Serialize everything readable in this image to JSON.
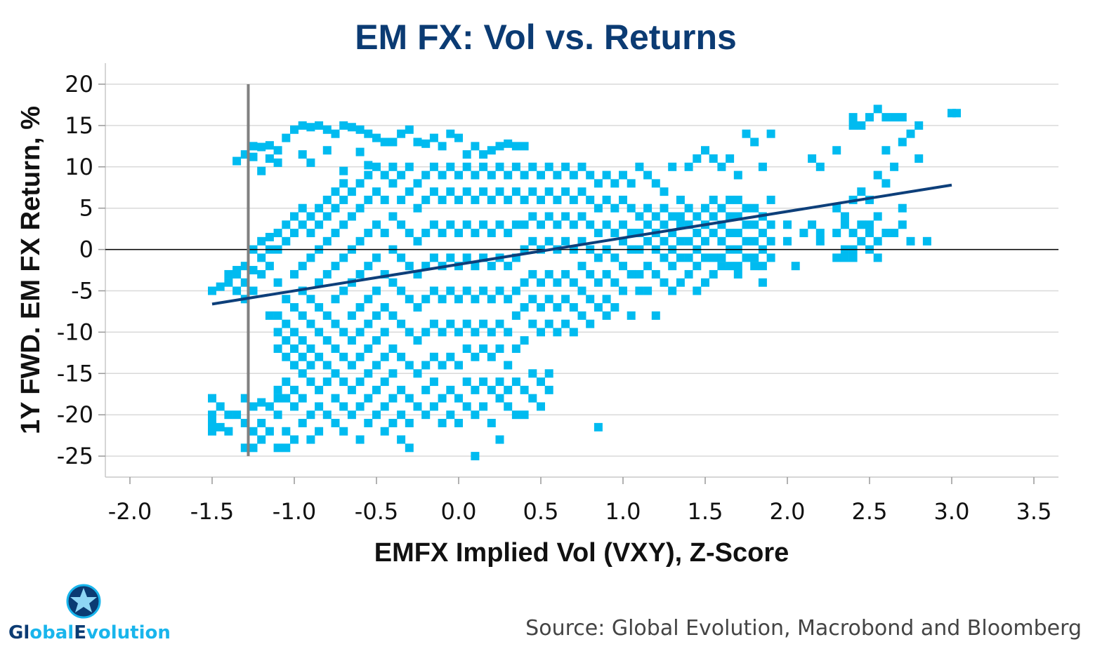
{
  "chart_data": {
    "type": "scatter",
    "title": "EM FX: Vol vs. Returns",
    "xlabel": "EMFX Implied Vol (VXY), Z-Score",
    "ylabel": "1Y FWD. EM FX Return, %",
    "xlim": [
      -2.0,
      3.5
    ],
    "ylim": [
      -27.5,
      22.5
    ],
    "xticks": [
      "-2.0",
      "-1.5",
      "-1.0",
      "-0.5",
      "0.0",
      "0.5",
      "1.0",
      "1.5",
      "2.0",
      "2.5",
      "3.0",
      "3.5"
    ],
    "xtick_values": [
      -2.0,
      -1.5,
      -1.0,
      -0.5,
      0.0,
      0.5,
      1.0,
      1.5,
      2.0,
      2.5,
      3.0,
      3.5
    ],
    "yticks": [
      "20",
      "15",
      "10",
      "5",
      "0",
      "-5",
      "-10",
      "-15",
      "-20",
      "-25"
    ],
    "ytick_values": [
      20,
      15,
      10,
      5,
      0,
      -5,
      -10,
      -15,
      -20,
      -25
    ],
    "grid": true,
    "colors": {
      "points": "#00bbf0",
      "trend": "#0d3f7a",
      "marker_line": "#808080",
      "title": "#0b3b73"
    },
    "reference_line_x": -1.28,
    "trendline": {
      "x": [
        -1.5,
        3.0
      ],
      "y": [
        -6.6,
        7.8
      ]
    },
    "columns": [
      [
        -1.5,
        [
          -5,
          -21,
          -20,
          -18,
          -22
        ]
      ],
      [
        -1.45,
        [
          -4.5,
          -19,
          -21.5
        ]
      ],
      [
        -1.4,
        [
          -4,
          -3,
          -20,
          -22
        ]
      ],
      [
        -1.35,
        [
          -3,
          -2.5,
          -5,
          -20,
          10.7
        ]
      ],
      [
        -1.3,
        [
          -2,
          -4,
          -6,
          -21,
          -24,
          -18,
          11.5
        ]
      ],
      [
        -1.25,
        [
          -2.5,
          -5,
          -24,
          -22,
          -19,
          0,
          11.2,
          12.5
        ]
      ],
      [
        -1.2,
        [
          -1,
          -3,
          1,
          -18.5,
          -21,
          -23,
          9.5,
          12.4
        ]
      ],
      [
        -1.15,
        [
          -2,
          0,
          1.5,
          -8,
          -19,
          -22,
          12.6,
          11
        ]
      ],
      [
        -1.1,
        [
          0,
          2,
          -4,
          -8,
          -10,
          -12,
          -18,
          -20,
          -24,
          -17,
          12,
          10.5
        ]
      ],
      [
        -1.05,
        [
          1,
          3,
          -6,
          -9,
          -11,
          -13,
          -16,
          -18,
          -22,
          -24,
          13.5
        ]
      ],
      [
        -1.0,
        [
          2,
          4,
          -3,
          -7,
          -10,
          -12,
          -14,
          -17,
          -19,
          -23,
          14.5
        ]
      ],
      [
        -0.95,
        [
          3,
          5,
          -2,
          -5,
          -8,
          -11,
          -13,
          -15,
          -18,
          -21,
          15,
          11.5
        ]
      ],
      [
        -0.9,
        [
          4,
          2,
          -1,
          -6,
          -9,
          -12,
          -14,
          -16,
          -20,
          -23,
          14.8,
          10.5
        ]
      ],
      [
        -0.85,
        [
          5,
          3,
          0,
          -4,
          -7,
          -10,
          -13,
          -17,
          -19,
          -22,
          15
        ]
      ],
      [
        -0.8,
        [
          6,
          4,
          1,
          -3,
          -8,
          -11,
          -14,
          -16,
          -20,
          14.5,
          12
        ]
      ],
      [
        -0.75,
        [
          5,
          7,
          2,
          -2,
          -6,
          -9,
          -12,
          -15,
          -18,
          -21,
          14
        ]
      ],
      [
        -0.7,
        [
          6,
          8,
          3,
          -1,
          -5,
          -10,
          -13,
          -16,
          -19,
          -22,
          15,
          9.5
        ]
      ],
      [
        -0.65,
        [
          7,
          4,
          0,
          -4,
          -8,
          -11,
          -14,
          -17,
          -20,
          14.8
        ]
      ],
      [
        -0.6,
        [
          8,
          5,
          1,
          -3,
          -7,
          -10,
          -13,
          -16,
          -19,
          -23,
          14.5,
          11.8
        ]
      ],
      [
        -0.55,
        [
          9,
          6,
          2,
          -2,
          -6,
          -9,
          -12,
          -15,
          -18,
          -21,
          14,
          10.2
        ]
      ],
      [
        -0.5,
        [
          10,
          7,
          3,
          -1,
          -5,
          -8,
          -11,
          -14,
          -17,
          -20,
          13.5
        ]
      ],
      [
        -0.45,
        [
          9,
          6,
          2,
          -3,
          -7,
          -10,
          -13,
          -16,
          -19,
          -22,
          13
        ]
      ],
      [
        -0.4,
        [
          10,
          8,
          4,
          0,
          -4,
          -8,
          -12,
          -15,
          -18,
          -21,
          13
        ]
      ],
      [
        -0.35,
        [
          9,
          6,
          3,
          -1,
          -5,
          -9,
          -13,
          -17,
          -20,
          -23,
          14
        ]
      ],
      [
        -0.3,
        [
          10,
          7,
          2,
          -2,
          -6,
          -10,
          -14,
          -18,
          -21,
          -24,
          14.5
        ]
      ],
      [
        -0.25,
        [
          8,
          5,
          1,
          -3,
          -7,
          -11,
          -15,
          -19,
          13
        ]
      ],
      [
        -0.2,
        [
          9,
          6,
          2,
          -2,
          -6,
          -10,
          -14,
          -17,
          -20,
          12.8
        ]
      ],
      [
        -0.15,
        [
          10,
          7,
          3,
          -1,
          -5,
          -9,
          -13,
          -16,
          -19,
          13.5
        ]
      ],
      [
        -0.1,
        [
          9,
          6,
          2,
          -2,
          -6,
          -10,
          -14,
          -18,
          -21,
          12.5
        ]
      ],
      [
        -0.05,
        [
          10,
          7,
          3,
          -1,
          -5,
          -9,
          -13,
          -17,
          -20,
          14
        ]
      ],
      [
        0.0,
        [
          9,
          6,
          2,
          -2,
          -6,
          -10,
          -14,
          -18,
          -21,
          13.5
        ]
      ],
      [
        0.05,
        [
          10,
          7,
          3,
          -1,
          -5,
          -9,
          -12,
          -16,
          -19,
          11.5
        ]
      ],
      [
        0.1,
        [
          9,
          6,
          2,
          -2,
          -6,
          -10,
          -13,
          -17,
          -20,
          -25,
          12.5
        ]
      ],
      [
        0.15,
        [
          10,
          7,
          3,
          -1,
          -5,
          -9,
          -12,
          -16,
          -19,
          11.5
        ]
      ],
      [
        0.2,
        [
          9,
          6,
          2,
          -2,
          -6,
          -10,
          -13,
          -17,
          -21,
          12
        ]
      ],
      [
        0.25,
        [
          10,
          7,
          3,
          -1,
          -5,
          -9,
          -12,
          -16,
          -18,
          -23,
          12.5
        ]
      ],
      [
        0.3,
        [
          9,
          6,
          2,
          -2,
          -6,
          -10,
          -14,
          -17,
          -19,
          12.8
        ]
      ],
      [
        0.35,
        [
          10,
          7,
          3,
          -1,
          -5,
          -8,
          -12,
          -16,
          -20,
          12.5
        ]
      ],
      [
        0.4,
        [
          9,
          6,
          3,
          0,
          -4,
          -7,
          -11,
          -17,
          -20,
          12.5
        ]
      ],
      [
        0.45,
        [
          10,
          7,
          4,
          1,
          -3,
          -6,
          -9,
          -15,
          -18
        ]
      ],
      [
        0.5,
        [
          9,
          6,
          3,
          0,
          -4,
          -7,
          -10,
          -16,
          -19
        ]
      ],
      [
        0.55,
        [
          10,
          7,
          4,
          1,
          -3,
          -6,
          -9,
          -15,
          -17
        ]
      ],
      [
        0.6,
        [
          9,
          6,
          3,
          0,
          -4,
          -7,
          -10
        ]
      ],
      [
        0.65,
        [
          10,
          7,
          4,
          1,
          -3,
          -6,
          -9
        ]
      ],
      [
        0.7,
        [
          9,
          6,
          3,
          0,
          -4,
          -7,
          -10
        ]
      ],
      [
        0.75,
        [
          10,
          7,
          4,
          1,
          -2,
          -5,
          -8
        ]
      ],
      [
        0.8,
        [
          9,
          6,
          3,
          0,
          -3,
          -6,
          -9
        ]
      ],
      [
        0.85,
        [
          8,
          5,
          2,
          -1,
          -4,
          -7,
          -21.5
        ]
      ],
      [
        0.9,
        [
          9,
          6,
          3,
          0,
          -3,
          -6,
          -8
        ]
      ],
      [
        0.95,
        [
          8,
          5,
          2,
          -1,
          -4,
          -7
        ]
      ],
      [
        1.0,
        [
          9,
          6,
          3,
          1,
          -2,
          -5
        ]
      ],
      [
        1.05,
        [
          8,
          5,
          2,
          0,
          -3,
          -8
        ]
      ],
      [
        1.1,
        [
          10,
          4,
          2,
          0,
          -3,
          -5
        ]
      ],
      [
        1.15,
        [
          9,
          5,
          3,
          1,
          -2,
          -5
        ]
      ],
      [
        1.2,
        [
          8,
          4,
          2,
          0,
          -3,
          -8
        ]
      ],
      [
        1.25,
        [
          7,
          5,
          3,
          1,
          -1,
          -4
        ]
      ],
      [
        1.3,
        [
          10,
          4,
          2,
          0,
          -2,
          -5
        ]
      ],
      [
        1.35,
        [
          6,
          4,
          3,
          1,
          -1,
          -4
        ]
      ],
      [
        1.4,
        [
          10,
          5,
          3,
          1,
          -1,
          -3
        ]
      ],
      [
        1.45,
        [
          11,
          4,
          2,
          0,
          -2,
          -5
        ]
      ],
      [
        1.5,
        [
          12,
          5,
          3,
          1,
          -1,
          -4
        ]
      ],
      [
        1.55,
        [
          11,
          6,
          4,
          2,
          -1,
          -3
        ]
      ],
      [
        1.6,
        [
          10,
          5,
          3,
          1,
          -1,
          -2
        ]
      ],
      [
        1.65,
        [
          11,
          6,
          4,
          2,
          0,
          -2
        ]
      ],
      [
        1.7,
        [
          9,
          6,
          4,
          2,
          0,
          -2,
          -3
        ]
      ],
      [
        1.75,
        [
          14,
          5,
          3,
          1,
          -1
        ]
      ],
      [
        1.8,
        [
          13,
          5,
          3,
          1,
          -1,
          -2
        ]
      ],
      [
        1.85,
        [
          10,
          4,
          2,
          0,
          -2,
          -4
        ]
      ],
      [
        1.9,
        [
          14,
          6,
          3,
          1,
          -1
        ]
      ],
      [
        2.0,
        [
          1,
          3
        ]
      ],
      [
        2.05,
        [
          -2
        ]
      ],
      [
        2.1,
        [
          2
        ]
      ],
      [
        2.15,
        [
          11,
          3
        ]
      ],
      [
        2.2,
        [
          10,
          2,
          1
        ]
      ],
      [
        2.3,
        [
          12,
          5,
          2,
          -1
        ]
      ],
      [
        2.35,
        [
          4,
          3,
          0,
          -1
        ]
      ],
      [
        2.4,
        [
          16,
          15,
          6,
          2,
          -1,
          0
        ]
      ],
      [
        2.45,
        [
          15,
          7,
          3,
          1
        ]
      ],
      [
        2.5,
        [
          16,
          6,
          3,
          2,
          0
        ]
      ],
      [
        2.55,
        [
          17,
          9,
          4,
          1,
          -1
        ]
      ],
      [
        2.6,
        [
          16,
          12,
          8,
          2
        ]
      ],
      [
        2.65,
        [
          16,
          10,
          2
        ]
      ],
      [
        2.7,
        [
          16,
          13,
          5,
          3
        ]
      ],
      [
        2.75,
        [
          14,
          1
        ]
      ],
      [
        2.8,
        [
          15,
          11
        ]
      ],
      [
        2.85,
        [
          1
        ]
      ],
      [
        3.0,
        [
          16.5
        ]
      ],
      [
        3.03,
        [
          16.5
        ]
      ]
    ]
  },
  "source": "Source: Global Evolution, Macrobond and Bloomberg",
  "logo": {
    "text": "GlobalEvolution",
    "parts": [
      "Gl",
      "obal",
      "E",
      "volution"
    ]
  }
}
